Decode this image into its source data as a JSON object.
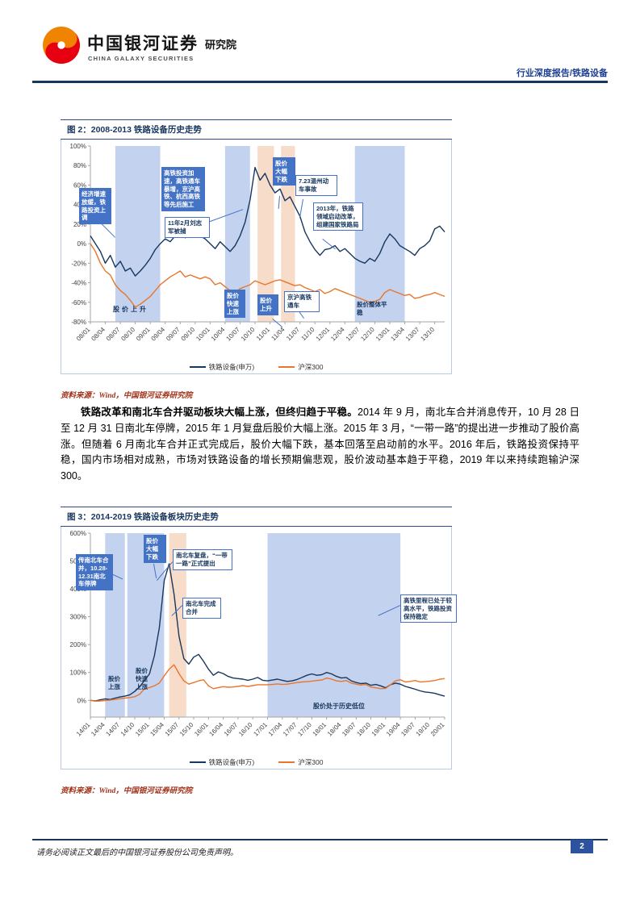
{
  "header": {
    "brand_cn": "中国银河证券",
    "brand_suffix": "研究院",
    "brand_en": "CHINA GALAXY SECURITIES",
    "report_type": "行业深度报告/铁路设备"
  },
  "fig2": {
    "title": "图 2：2008-2013 铁路设备历史走势",
    "source": "资料来源：Wind，中国银河证券研究院"
  },
  "fig3": {
    "title": "图 3：2014-2019 铁路设备板块历史走势",
    "source": "资料来源：Wind，中国银河证券研究院"
  },
  "paragraph": {
    "lead": "铁路改革和南北车合并驱动板块大幅上涨，但终归趋于平稳。",
    "body": "2014 年 9 月，南北车合并消息传开，10 月 28 日至 12 月 31 日南北车停牌，2015 年 1 月复盘后股价大幅上涨。2015 年 3 月，“一带一路”的提出进一步推动了股价高涨。但随着 6 月南北车合并正式完成后，股价大幅下跌，基本回落至启动前的水平。2016 年后，铁路投资保持平稳，国内市场相对成熟，市场对铁路设备的增长预期偏悲观，股价波动基本趋于平稳，2019 年以来持续跑输沪深 300。"
  },
  "footer": {
    "disclaimer": "请务必阅读正文最后的中国银河证券股份公司免责声明。",
    "page": "2"
  },
  "chart_data": [
    {
      "type": "line",
      "title": "2008-2013 铁路设备历史走势",
      "x_unit": "month",
      "x_tick_step": 3,
      "x_tick_labels": [
        "08/01",
        "08/04",
        "08/07",
        "08/10",
        "09/01",
        "09/04",
        "09/07",
        "09/10",
        "10/01",
        "10/04",
        "10/07",
        "10/10",
        "11/01",
        "11/04",
        "11/07",
        "11/10",
        "12/01",
        "12/04",
        "12/07",
        "12/10",
        "13/01",
        "13/04",
        "13/07",
        "13/10"
      ],
      "ylim": [
        -80,
        100
      ],
      "y_ticks": [
        100,
        80,
        60,
        40,
        20,
        0,
        -20,
        -40,
        -60,
        -80
      ],
      "y_suffix": "%",
      "grid": false,
      "legend_position": "bottom",
      "series": [
        {
          "name": "铁路设备(申万)",
          "color": "#17375E",
          "values": [
            8,
            0,
            -8,
            -20,
            -12,
            -24,
            -18,
            -28,
            -25,
            -33,
            -28,
            -22,
            -15,
            -6,
            0,
            5,
            2,
            8,
            10,
            6,
            12,
            15,
            8,
            5,
            0,
            -5,
            2,
            -3,
            -8,
            -2,
            8,
            22,
            45,
            78,
            65,
            72,
            60,
            52,
            56,
            44,
            48,
            38,
            28,
            12,
            2,
            -6,
            -12,
            -6,
            -5,
            -2,
            -8,
            -5,
            -10,
            -15,
            -18,
            -20,
            -15,
            -18,
            -10,
            2,
            10,
            5,
            -2,
            -5,
            -8,
            -12,
            -5,
            -2,
            3,
            15,
            18,
            12
          ]
        },
        {
          "name": "沪深300",
          "color": "#E8762C",
          "values": [
            0,
            -8,
            -20,
            -28,
            -32,
            -42,
            -48,
            -52,
            -58,
            -65,
            -62,
            -58,
            -54,
            -48,
            -42,
            -38,
            -34,
            -31,
            -28,
            -34,
            -32,
            -34,
            -36,
            -34,
            -36,
            -42,
            -40,
            -44,
            -48,
            -50,
            -46,
            -44,
            -42,
            -38,
            -40,
            -42,
            -40,
            -38,
            -37,
            -39,
            -41,
            -43,
            -42,
            -45,
            -47,
            -49,
            -47,
            -51,
            -49,
            -46,
            -48,
            -50,
            -52,
            -54,
            -56,
            -58,
            -60,
            -59,
            -57,
            -50,
            -47,
            -49,
            -51,
            -53,
            -52,
            -56,
            -55,
            -53,
            -52,
            -50,
            -52,
            -54
          ]
        }
      ],
      "bands": [
        {
          "from": 5,
          "to": 14,
          "color": "#C3D2EE"
        },
        {
          "from": 27,
          "to": 32,
          "color": "#C3D2EE"
        },
        {
          "from": 33.5,
          "to": 36.8,
          "color": "#F7DCC9"
        },
        {
          "from": 38.2,
          "to": 41,
          "color": "#F7DCC9"
        },
        {
          "from": 53,
          "to": 63,
          "color": "#C3D2EE"
        }
      ],
      "annotations": [
        "经济增速放缓，铁路投资上调",
        "高铁投资加速，高铁通车暴增，京沪高铁、杭西高铁等先后施工",
        "11年2月刘志军被捕",
        "股价大幅下跌",
        "7.23温州动车事故",
        "2013年，铁路领域启动改革，组建国家铁路局",
        "京沪高铁通车",
        "股价上升",
        "股价快速上涨",
        "股价上升",
        "股价整体平稳"
      ]
    },
    {
      "type": "line",
      "title": "2014-2019 铁路设备板块历史走势",
      "x_unit": "month",
      "x_tick_step": 3,
      "x_tick_labels": [
        "14/01",
        "14/04",
        "14/07",
        "14/10",
        "15/01",
        "15/04",
        "15/07",
        "15/10",
        "16/01",
        "16/04",
        "16/07",
        "16/10",
        "17/01",
        "17/04",
        "17/07",
        "17/10",
        "18/01",
        "18/04",
        "18/07",
        "18/10",
        "19/01",
        "19/04",
        "19/07",
        "19/10",
        "20/01"
      ],
      "ylim": [
        -60,
        600
      ],
      "y_ticks": [
        600,
        500,
        400,
        300,
        200,
        100,
        0
      ],
      "y_suffix": "%",
      "grid": false,
      "legend_position": "bottom",
      "series": [
        {
          "name": "铁路设备(申万)",
          "color": "#17375E",
          "values": [
            0,
            -2,
            2,
            5,
            3,
            8,
            12,
            15,
            20,
            32,
            48,
            72,
            95,
            160,
            260,
            430,
            490,
            380,
            230,
            150,
            130,
            155,
            165,
            140,
            112,
            90,
            102,
            96,
            86,
            80,
            78,
            76,
            72,
            76,
            82,
            72,
            70,
            73,
            76,
            72,
            68,
            70,
            75,
            82,
            90,
            95,
            90,
            92,
            100,
            95,
            86,
            80,
            82,
            70,
            64,
            60,
            62,
            54,
            57,
            52,
            45,
            56,
            62,
            58,
            50,
            45,
            40,
            34,
            30,
            28,
            25,
            20,
            15
          ]
        },
        {
          "name": "沪深300",
          "color": "#E8762C",
          "values": [
            0,
            -3,
            -2,
            -1,
            1,
            3,
            6,
            8,
            10,
            13,
            22,
            42,
            46,
            52,
            62,
            88,
            112,
            128,
            96,
            70,
            58,
            64,
            70,
            74,
            52,
            42,
            46,
            49,
            47,
            48,
            50,
            53,
            50,
            53,
            56,
            56,
            56,
            57,
            59,
            57,
            58,
            61,
            64,
            66,
            67,
            69,
            71,
            73,
            80,
            76,
            70,
            68,
            71,
            62,
            58,
            55,
            57,
            48,
            45,
            42,
            43,
            56,
            70,
            74,
            66,
            68,
            71,
            66,
            67,
            69,
            71,
            76,
            78
          ]
        }
      ],
      "bands": [
        {
          "from": 3,
          "to": 7,
          "color": "#C3D2EE"
        },
        {
          "from": 7.5,
          "to": 15,
          "color": "#C3D2EE"
        },
        {
          "from": 16,
          "to": 19.5,
          "color": "#F7DCC9"
        },
        {
          "from": 36,
          "to": 63,
          "color": "#C3D2EE"
        }
      ],
      "annotations": [
        "传南北车合并，10.28-12.31南北车停牌",
        "股价大幅下跌",
        "南北车复盘，“一带一路”正式提出",
        "南北车完成合并",
        "高铁里程已处于较高水平，铁路投资保持稳定",
        "股价上涨",
        "股价快速上涨",
        "股价处于历史低位"
      ]
    }
  ]
}
